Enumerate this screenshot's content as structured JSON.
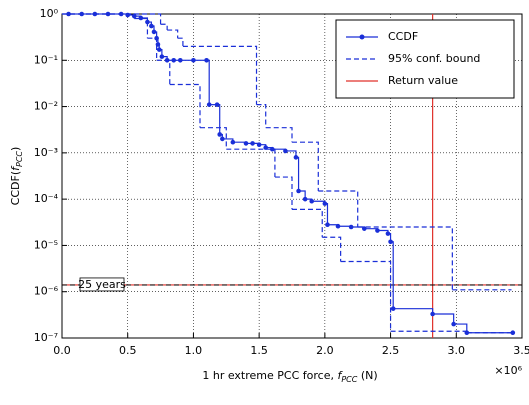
{
  "chart_data": {
    "type": "step",
    "xlabel": {
      "text": "1 hr extreme PCC force, ",
      "symbol": "f",
      "subscript": "PCC",
      "end": " (N)"
    },
    "ylabel": {
      "text": "CCDF(",
      "symbol": "f",
      "subscript": "PCC",
      "end": ")"
    },
    "x_multiplier": "×10⁶",
    "xlim": [
      0,
      3.5
    ],
    "xticks": [
      {
        "value": 0,
        "label": "0.0"
      },
      0.5,
      {
        "value": 1,
        "label": "1.0"
      },
      1.5,
      {
        "value": 2,
        "label": "2.0"
      },
      2.5,
      {
        "value": 3,
        "label": "3.0"
      },
      3.5
    ],
    "ylim": [
      1e-07,
      1
    ],
    "yticks": [
      {
        "value": 1e-07,
        "label": "10⁻⁷"
      },
      {
        "value": 1e-06,
        "label": "10⁻⁶"
      },
      {
        "value": 1e-05,
        "label": "10⁻⁵"
      },
      {
        "value": 0.0001,
        "label": "10⁻⁴"
      },
      {
        "value": 0.001,
        "label": "10⁻³"
      },
      {
        "value": 0.01,
        "label": "10⁻²"
      },
      {
        "value": 0.1,
        "label": "10⁻¹"
      },
      {
        "value": 1,
        "label": "10⁰"
      }
    ],
    "log_y": true,
    "grid": true,
    "legend": "upper right",
    "series": [
      {
        "name": "CCDF",
        "color": "#1a2fd8",
        "markers": true,
        "dashed": false,
        "x": [
          0.05,
          0.15,
          0.25,
          0.35,
          0.45,
          0.5,
          0.55,
          0.6,
          0.65,
          0.68,
          0.7,
          0.72,
          0.73,
          0.74,
          0.76,
          0.8,
          0.85,
          0.9,
          1.0,
          1.1,
          1.12,
          1.18,
          1.2,
          1.22,
          1.3,
          1.4,
          1.45,
          1.5,
          1.55,
          1.6,
          1.7,
          1.78,
          1.8,
          1.85,
          1.9,
          2.0,
          2.02,
          2.1,
          2.2,
          2.3,
          2.4,
          2.48,
          2.5,
          2.52,
          2.82,
          2.98,
          3.08,
          3.43
        ],
        "values": [
          1,
          1,
          1,
          1,
          1,
          0.95,
          0.9,
          0.82,
          0.67,
          0.55,
          0.41,
          0.3,
          0.22,
          0.17,
          0.12,
          0.1,
          0.1,
          0.1,
          0.1,
          0.1,
          0.011,
          0.011,
          0.0025,
          0.002,
          0.0017,
          0.0016,
          0.0016,
          0.0015,
          0.0013,
          0.0012,
          0.0011,
          0.0008,
          0.00015,
          0.0001,
          9e-05,
          8e-05,
          2.8e-05,
          2.6e-05,
          2.5e-05,
          2.3e-05,
          2.1e-05,
          1.8e-05,
          1.2e-05,
          4.3e-07,
          3.3e-07,
          2e-07,
          1.3e-07,
          1.3e-07
        ]
      },
      {
        "name": "95% conf. bound",
        "color": "#1a2fd8",
        "markers": false,
        "dashed": true,
        "x": [
          0,
          0.75,
          0.8,
          0.88,
          0.92,
          1.48,
          1.55,
          1.75,
          1.95,
          2.25,
          2.97,
          3.42
        ],
        "values": [
          1,
          0.6,
          0.45,
          0.3,
          0.2,
          0.011,
          0.0035,
          0.0017,
          0.00015,
          2.5e-05,
          1.1e-06,
          1.1e-06
        ]
      },
      {
        "name": null,
        "color": "#1a2fd8",
        "markers": false,
        "dashed": true,
        "x": [
          0,
          0.55,
          0.65,
          0.72,
          0.82,
          1.05,
          1.25,
          1.62,
          1.75,
          1.98,
          2.12,
          2.5,
          3.08,
          3.43
        ],
        "values": [
          1,
          0.8,
          0.3,
          0.1,
          0.03,
          0.0035,
          0.0012,
          0.0003,
          6e-05,
          1.5e-05,
          4.5e-06,
          1.4e-07,
          1.3e-07,
          1.3e-07
        ]
      }
    ],
    "return_value": {
      "name": "Return value",
      "color": "#e0302a",
      "x": 2.82,
      "y": 1.4e-06,
      "label": "25 years"
    }
  }
}
